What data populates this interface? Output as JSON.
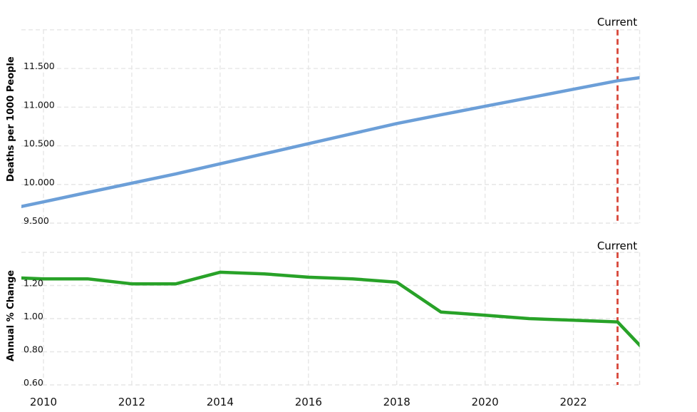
{
  "page": {
    "background": "#ffffff"
  },
  "current_marker": {
    "label": "Current",
    "year": 2023,
    "line_color": "#d8473a"
  },
  "x_axis": {
    "tick_years": [
      2010,
      2012,
      2014,
      2016,
      2018,
      2020,
      2022
    ]
  },
  "chart_data": [
    {
      "type": "line",
      "panel": "top",
      "ylabel": "Deaths per 1000 People",
      "line_color": "#6c9fd8",
      "x": [
        2009,
        2010,
        2011,
        2012,
        2013,
        2014,
        2015,
        2016,
        2017,
        2018,
        2019,
        2020,
        2021,
        2022,
        2023,
        2024
      ],
      "y": [
        9.655,
        9.775,
        9.896,
        10.016,
        10.137,
        10.267,
        10.397,
        10.527,
        10.658,
        10.788,
        10.9,
        11.011,
        11.121,
        11.231,
        11.341,
        11.42
      ],
      "xlim": [
        2009.5,
        2023.5
      ],
      "ylim": [
        9.5,
        12.0
      ],
      "yticks": [
        {
          "value": 9.5,
          "label": "9.500"
        },
        {
          "value": 10.0,
          "label": "10.000"
        },
        {
          "value": 10.5,
          "label": "10.500"
        },
        {
          "value": 11.0,
          "label": "11.000"
        },
        {
          "value": 11.5,
          "label": "11.500"
        },
        {
          "value": 12.0,
          "label": ""
        }
      ],
      "grid": true,
      "legend": "none"
    },
    {
      "type": "line",
      "panel": "bottom",
      "ylabel": "Annual % Change",
      "line_color": "#28a228",
      "x": [
        2009,
        2010,
        2011,
        2012,
        2013,
        2014,
        2015,
        2016,
        2017,
        2018,
        2019,
        2020,
        2021,
        2022,
        2023,
        2024
      ],
      "y": [
        1.25,
        1.24,
        1.24,
        1.21,
        1.21,
        1.28,
        1.27,
        1.25,
        1.24,
        1.22,
        1.04,
        1.02,
        1.0,
        0.99,
        0.98,
        0.7
      ],
      "xlim": [
        2009.5,
        2023.5
      ],
      "ylim": [
        0.6,
        1.4
      ],
      "yticks": [
        {
          "value": 0.6,
          "label": "0.60"
        },
        {
          "value": 0.8,
          "label": "0.80"
        },
        {
          "value": 1.0,
          "label": "1.00"
        },
        {
          "value": 1.2,
          "label": "1.20"
        },
        {
          "value": 1.4,
          "label": ""
        }
      ],
      "grid": true,
      "legend": "none"
    }
  ]
}
